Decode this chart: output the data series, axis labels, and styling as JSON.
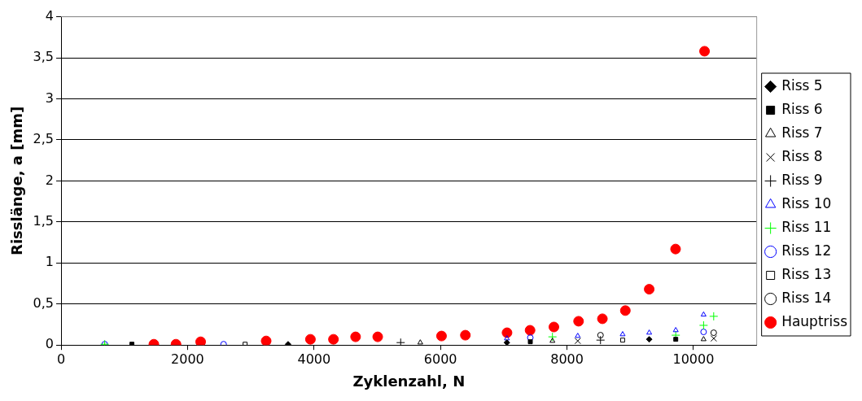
{
  "chart_data": {
    "type": "scatter",
    "xlabel": "Zyklenzahl, N",
    "ylabel": "Risslänge, a [mm]",
    "xlim": [
      0,
      11000
    ],
    "xticks": [
      0,
      2000,
      4000,
      6000,
      8000,
      10000
    ],
    "ylim": [
      0,
      4
    ],
    "yticks": [
      0,
      {
        "value": 0.5,
        "label": "0,5"
      },
      1,
      {
        "value": 1.5,
        "label": "1,5"
      },
      2,
      {
        "value": 2.5,
        "label": "2,5"
      },
      3,
      {
        "value": 3.5,
        "label": "3,5"
      },
      4
    ],
    "grid": "y",
    "legend": "right",
    "series": [
      {
        "name": "Riss 5",
        "color": "#000000",
        "marker": "diamond",
        "x": [
          3590,
          7050,
          9300
        ],
        "values": [
          0.01,
          0.03,
          0.07
        ]
      },
      {
        "name": "Riss 6",
        "color": "#000000",
        "marker": "square",
        "x": [
          1120,
          7420,
          9720
        ],
        "values": [
          0.01,
          0.04,
          0.07
        ]
      },
      {
        "name": "Riss 7",
        "color": "#000000",
        "marker": "triangle",
        "x": [
          5680,
          7770,
          10160
        ],
        "values": [
          0.03,
          0.05,
          0.07
        ]
      },
      {
        "name": "Riss 8",
        "color": "#000000",
        "marker": "x",
        "x": [
          8170,
          10320
        ],
        "values": [
          0.05,
          0.08
        ]
      },
      {
        "name": "Riss 9",
        "color": "#000000",
        "marker": "cross",
        "x": [
          5370,
          8530
        ],
        "values": [
          0.03,
          0.06
        ]
      },
      {
        "name": "Riss 10",
        "color": "#0000ff",
        "marker": "triangle",
        "x": [
          7050,
          8170,
          8880,
          9300,
          9720,
          10160
        ],
        "values": [
          0.08,
          0.11,
          0.13,
          0.15,
          0.18,
          0.37
        ]
      },
      {
        "name": "Riss 11",
        "color": "#00ff00",
        "marker": "cross",
        "x": [
          690,
          7770,
          9720,
          10160,
          10320
        ],
        "values": [
          0.01,
          0.1,
          0.12,
          0.24,
          0.35
        ]
      },
      {
        "name": "Riss 12",
        "color": "#0000ff",
        "marker": "circle",
        "x": [
          690,
          2570,
          7420,
          10160
        ],
        "values": [
          0.01,
          0.01,
          0.09,
          0.16
        ]
      },
      {
        "name": "Riss 13",
        "color": "#000000",
        "marker": "square",
        "x": [
          2910,
          8880
        ],
        "values": [
          0.01,
          0.06
        ]
      },
      {
        "name": "Riss 14",
        "color": "#000000",
        "marker": "circle",
        "x": [
          8530,
          10320
        ],
        "values": [
          0.12,
          0.15
        ]
      },
      {
        "name": "Hauptriss",
        "color": "#ff0000",
        "marker": "circle",
        "x": [
          1467,
          1817,
          2207,
          3243,
          3943,
          4307,
          4657,
          5007,
          6016,
          6393,
          7052,
          7416,
          7793,
          8183,
          8560,
          8923,
          9300,
          9717,
          10175
        ],
        "values": [
          0.01,
          0.01,
          0.04,
          0.05,
          0.07,
          0.07,
          0.1,
          0.1,
          0.11,
          0.12,
          0.15,
          0.18,
          0.22,
          0.29,
          0.32,
          0.42,
          0.68,
          1.17,
          3.58
        ]
      }
    ]
  }
}
